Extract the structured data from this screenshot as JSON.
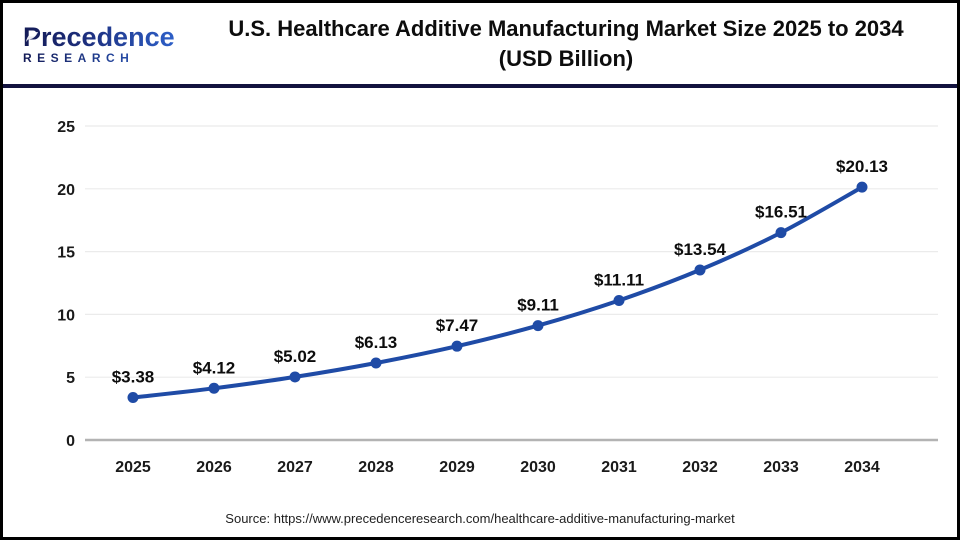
{
  "header": {
    "logo": {
      "line1": "Precedence",
      "line2": "RESEARCH"
    },
    "title_line1": "U.S. Healthcare Additive Manufacturing Market Size 2025 to 2034",
    "title_line2": "(USD Billion)"
  },
  "footer": {
    "source": "Source: https://www.precedenceresearch.com/healthcare-additive-manufacturing-market"
  },
  "chart_data": {
    "type": "line",
    "title": "U.S. Healthcare Additive Manufacturing Market Size 2025 to 2034 (USD Billion)",
    "categories": [
      "2025",
      "2026",
      "2027",
      "2028",
      "2029",
      "2030",
      "2031",
      "2032",
      "2033",
      "2034"
    ],
    "values": [
      3.38,
      4.12,
      5.02,
      6.13,
      7.47,
      9.11,
      11.11,
      13.54,
      16.51,
      20.13
    ],
    "point_labels": [
      "$3.38",
      "$4.12",
      "$5.02",
      "$6.13",
      "$7.47",
      "$9.11",
      "$11.11",
      "$13.54",
      "$16.51",
      "$20.13"
    ],
    "xlabel": "",
    "ylabel": "",
    "ylim": [
      0,
      25
    ],
    "yticks": [
      0,
      5,
      10,
      15,
      20,
      25
    ],
    "grid": true,
    "legend_position": "none",
    "colors": {
      "line": "#1f4ba6",
      "marker": "#1f4ba6",
      "grid": "#ebebeb",
      "zero_axis": "#b3b3b3",
      "tick_text": "#1a1a1a",
      "label_text": "#0d0d0d"
    }
  }
}
